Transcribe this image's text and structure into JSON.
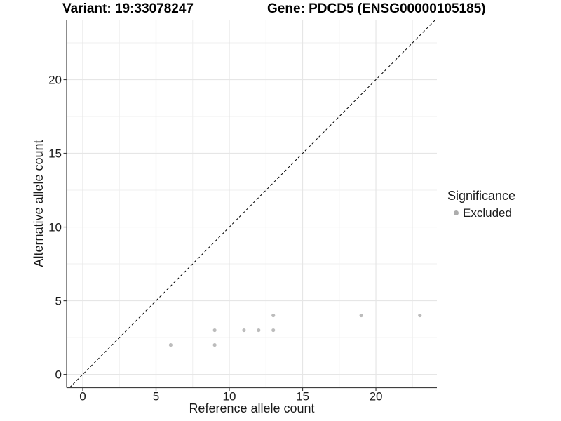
{
  "chart_data": {
    "type": "scatter",
    "title_left": "Variant: 19:33078247",
    "title_right": "Gene: PDCD5 (ENSG00000105185)",
    "xlabel": "Reference allele count",
    "ylabel": "Alternative allele count",
    "x_axis": {
      "min": -1.1,
      "max": 24.16,
      "major_ticks": [
        0,
        5,
        10,
        15,
        20
      ],
      "minor_ticks": [
        2.5,
        7.5,
        12.5,
        17.5,
        22.5
      ]
    },
    "y_axis": {
      "min": -0.9,
      "max": 24.07,
      "major_ticks": [
        0,
        5,
        10,
        15,
        20
      ],
      "minor_ticks": [
        2.5,
        7.5,
        12.5,
        17.5,
        22.5
      ]
    },
    "grid": {
      "major_color": "#e6e6e6",
      "minor_color": "#efefef",
      "background": "#ffffff"
    },
    "identity_line": {
      "slope": 1,
      "intercept": 0,
      "style": "dashed",
      "color": "#000000"
    },
    "series": [
      {
        "name": "Excluded",
        "color": "#bcbcbc",
        "points": [
          [
            6,
            2
          ],
          [
            9,
            2
          ],
          [
            9,
            3
          ],
          [
            11,
            3
          ],
          [
            12,
            3
          ],
          [
            13,
            3
          ],
          [
            13,
            4
          ],
          [
            19,
            4
          ],
          [
            23,
            4
          ]
        ]
      }
    ],
    "legend": {
      "title": "Significance",
      "position": "right",
      "items": [
        {
          "label": "Excluded",
          "color": "#adadad"
        }
      ]
    }
  }
}
